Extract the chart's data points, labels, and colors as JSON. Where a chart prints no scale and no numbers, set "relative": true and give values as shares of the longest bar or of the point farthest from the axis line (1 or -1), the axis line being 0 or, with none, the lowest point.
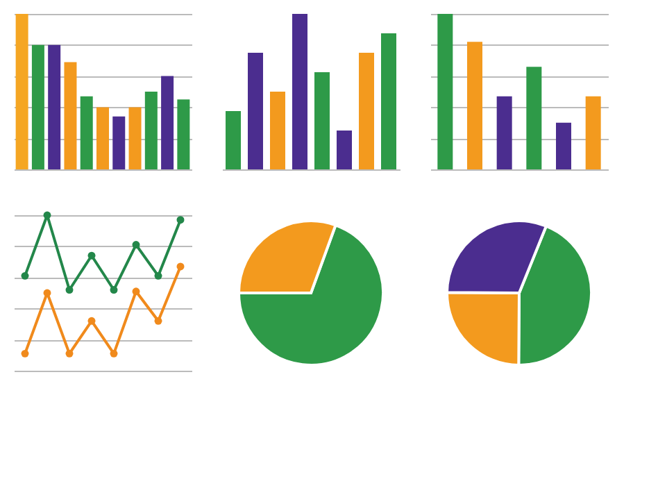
{
  "chart_data": [
    {
      "type": "bar",
      "relative": true,
      "grid": true,
      "categories": [
        null,
        null,
        null,
        null,
        null,
        null,
        null,
        null,
        null,
        null,
        null
      ],
      "values": [
        1,
        0.8,
        0.8,
        0.69,
        0.47,
        0.4,
        0.34,
        0.4,
        0.5,
        0.6,
        0.45
      ],
      "colors": [
        "#f5a623",
        "#2e9a48",
        "#4b2d8f",
        "#f39a1e",
        "#2e9a48",
        "#f39a1e",
        "#4b2d8f",
        "#f39a1e",
        "#2e9a48",
        "#4b2d8f",
        "#2e9a48"
      ]
    },
    {
      "type": "bar",
      "relative": true,
      "categories": [
        null,
        null,
        null,
        null,
        null,
        null,
        null,
        null
      ],
      "values": [
        0.375,
        0.75,
        0.5,
        1,
        0.625,
        0.25,
        0.75,
        0.875
      ],
      "colors": [
        "#2e9a48",
        "#4b2d8f",
        "#f39a1e",
        "#4b2d8f",
        "#2e9a48",
        "#4b2d8f",
        "#f39a1e",
        "#2e9a48"
      ]
    },
    {
      "type": "bar",
      "relative": true,
      "grid": true,
      "categories": [
        null,
        null,
        null,
        null,
        null,
        null
      ],
      "values": [
        1,
        0.82,
        0.47,
        0.66,
        0.3,
        0.47
      ],
      "colors": [
        "#2e9a48",
        "#f39a1e",
        "#4b2d8f",
        "#2e9a48",
        "#4b2d8f",
        "#f39a1e"
      ]
    },
    {
      "type": "line",
      "relative": true,
      "grid": true,
      "marker": "circle",
      "categories": [
        null,
        null,
        null,
        null,
        null,
        null,
        null,
        null
      ],
      "series": [
        {
          "color": "#23874a",
          "values": [
            0.61,
            1,
            0.52,
            0.74,
            0.52,
            0.81,
            0.61,
            0.97
          ]
        },
        {
          "color": "#f08a1c",
          "values": [
            0.11,
            0.5,
            0.11,
            0.32,
            0.11,
            0.51,
            0.32,
            0.67
          ]
        }
      ]
    },
    {
      "type": "pie",
      "categories": [
        null,
        null
      ],
      "values": [
        69.5,
        30.5
      ],
      "colors": [
        "#2e9a48",
        "#f39a1e"
      ]
    },
    {
      "type": "pie",
      "categories": [
        null,
        null,
        null
      ],
      "values": [
        44,
        25,
        31
      ],
      "colors": [
        "#2e9a48",
        "#f39a1e",
        "#4b2d8f"
      ]
    }
  ]
}
